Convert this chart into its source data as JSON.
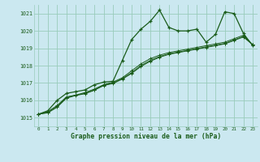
{
  "xlabel": "Graphe pression niveau de la mer (hPa)",
  "bg_color": "#cbe8f0",
  "grid_color": "#99ccbb",
  "line_color": "#1a5c1a",
  "xlim": [
    -0.5,
    23.5
  ],
  "ylim": [
    1014.5,
    1021.5
  ],
  "yticks": [
    1015,
    1016,
    1017,
    1018,
    1019,
    1020,
    1021
  ],
  "xticks": [
    0,
    1,
    2,
    3,
    4,
    5,
    6,
    7,
    8,
    9,
    10,
    11,
    12,
    13,
    14,
    15,
    16,
    17,
    18,
    19,
    20,
    21,
    22,
    23
  ],
  "series": [
    {
      "x": [
        0,
        1,
        2,
        3,
        4,
        5,
        6,
        7,
        8,
        9,
        10,
        11,
        12,
        13,
        14,
        15,
        16,
        17,
        18,
        19,
        20,
        21,
        22,
        23
      ],
      "y": [
        1015.2,
        1015.4,
        1016.0,
        1016.4,
        1016.5,
        1016.6,
        1016.9,
        1017.05,
        1017.1,
        1018.3,
        1019.5,
        1020.1,
        1020.55,
        1021.2,
        1020.2,
        1020.0,
        1020.0,
        1020.1,
        1019.35,
        1019.8,
        1021.1,
        1021.0,
        1019.85,
        1019.15
      ]
    },
    {
      "x": [
        0,
        1,
        2,
        3,
        4,
        5,
        6,
        7,
        8,
        9,
        10,
        11,
        12,
        13,
        14,
        15,
        16,
        17,
        18,
        19,
        20,
        21,
        22,
        23
      ],
      "y": [
        1015.2,
        1015.35,
        1015.7,
        1016.2,
        1016.3,
        1016.45,
        1016.65,
        1016.9,
        1017.05,
        1017.3,
        1017.7,
        1018.1,
        1018.4,
        1018.6,
        1018.75,
        1018.85,
        1018.95,
        1019.05,
        1019.15,
        1019.25,
        1019.35,
        1019.55,
        1019.75,
        1019.2
      ]
    },
    {
      "x": [
        0,
        1,
        2,
        3,
        4,
        5,
        6,
        7,
        8,
        9,
        10,
        11,
        12,
        13,
        14,
        15,
        16,
        17,
        18,
        19,
        20,
        21,
        22,
        23
      ],
      "y": [
        1015.2,
        1015.3,
        1015.65,
        1016.15,
        1016.3,
        1016.4,
        1016.6,
        1016.88,
        1017.0,
        1017.25,
        1017.6,
        1018.0,
        1018.3,
        1018.52,
        1018.68,
        1018.78,
        1018.88,
        1018.98,
        1019.08,
        1019.18,
        1019.28,
        1019.48,
        1019.68,
        1019.2
      ]
    },
    {
      "x": [
        0,
        1,
        2,
        3,
        4,
        5,
        6,
        7,
        8,
        9,
        10,
        11,
        12,
        13,
        14,
        15,
        16,
        17,
        18,
        19,
        20,
        21,
        22,
        23
      ],
      "y": [
        1015.2,
        1015.28,
        1015.6,
        1016.12,
        1016.28,
        1016.38,
        1016.58,
        1016.85,
        1016.97,
        1017.22,
        1017.55,
        1017.95,
        1018.25,
        1018.48,
        1018.65,
        1018.75,
        1018.85,
        1018.95,
        1019.05,
        1019.15,
        1019.25,
        1019.45,
        1019.65,
        1019.2
      ]
    }
  ]
}
